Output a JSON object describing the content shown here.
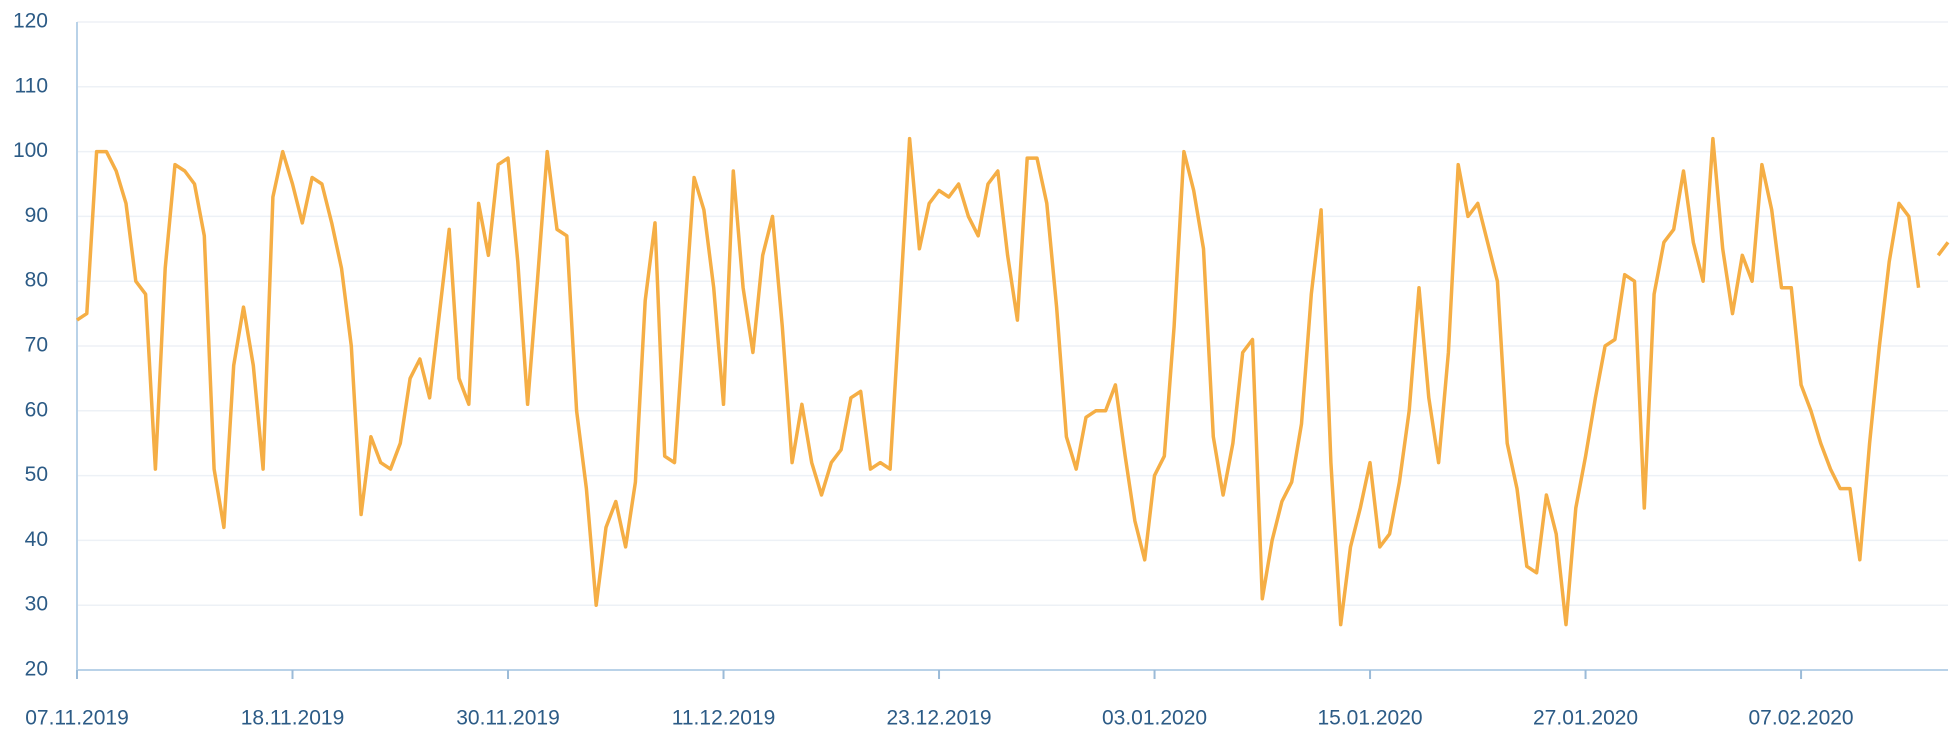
{
  "chart_data": {
    "type": "line",
    "categories": [
      "07.11.2019",
      null,
      null,
      null,
      null,
      null,
      null,
      null,
      null,
      null,
      null,
      null,
      null,
      null,
      null,
      null,
      null,
      null,
      null,
      null,
      null,
      null,
      "18.11.2019",
      null,
      null,
      null,
      null,
      null,
      null,
      null,
      null,
      null,
      null,
      null,
      null,
      null,
      null,
      null,
      null,
      null,
      null,
      null,
      null,
      null,
      "30.11.2019",
      null,
      null,
      null,
      null,
      null,
      null,
      null,
      null,
      null,
      null,
      null,
      null,
      null,
      null,
      null,
      null,
      null,
      null,
      null,
      null,
      null,
      "11.12.2019",
      null,
      null,
      null,
      null,
      null,
      null,
      null,
      null,
      null,
      null,
      null,
      null,
      null,
      null,
      null,
      null,
      null,
      null,
      null,
      null,
      null,
      "23.12.2019",
      null,
      null,
      null,
      null,
      null,
      null,
      null,
      null,
      null,
      null,
      null,
      null,
      null,
      null,
      null,
      null,
      null,
      null,
      null,
      null,
      null,
      "03.01.2020",
      null,
      null,
      null,
      null,
      null,
      null,
      null,
      null,
      null,
      null,
      null,
      null,
      null,
      null,
      null,
      null,
      null,
      null,
      null,
      null,
      null,
      "15.01.2020",
      null,
      null,
      null,
      null,
      null,
      null,
      null,
      null,
      null,
      null,
      null,
      null,
      null,
      null,
      null,
      null,
      null,
      null,
      null,
      null,
      null,
      "27.01.2020",
      null,
      null,
      null,
      null,
      null,
      null,
      null,
      null,
      null,
      null,
      null,
      null,
      null,
      null,
      null,
      null,
      null,
      null,
      null,
      null,
      null,
      "07.02.2020",
      null,
      null,
      null,
      null,
      null,
      null,
      null,
      null,
      null,
      null,
      null,
      null,
      null,
      null,
      null
    ],
    "values": [
      74,
      75,
      100,
      100,
      97,
      92,
      80,
      78,
      51,
      82,
      98,
      97,
      95,
      87,
      51,
      42,
      67,
      76,
      67,
      51,
      93,
      100,
      95,
      89,
      96,
      95,
      89,
      82,
      70,
      44,
      56,
      52,
      51,
      55,
      65,
      68,
      62,
      75,
      88,
      65,
      61,
      92,
      84,
      98,
      99,
      83,
      61,
      80,
      100,
      88,
      87,
      60,
      48,
      30,
      42,
      46,
      39,
      49,
      77,
      89,
      53,
      52,
      74,
      96,
      91,
      79,
      61,
      97,
      79,
      69,
      84,
      90,
      73,
      52,
      61,
      52,
      47,
      52,
      54,
      62,
      63,
      51,
      52,
      51,
      76,
      102,
      85,
      92,
      94,
      93,
      95,
      90,
      87,
      95,
      97,
      84,
      74,
      99,
      99,
      92,
      76,
      56,
      51,
      59,
      60,
      60,
      64,
      53,
      43,
      37,
      50,
      53,
      73,
      100,
      94,
      85,
      56,
      47,
      55,
      69,
      71,
      31,
      40,
      46,
      49,
      58,
      78,
      91,
      52,
      27,
      39,
      45,
      52,
      39,
      41,
      49,
      60,
      79,
      62,
      52,
      69,
      98,
      90,
      92,
      86,
      80,
      55,
      48,
      36,
      35,
      47,
      41,
      27,
      45,
      53,
      62,
      70,
      71,
      81,
      80,
      45,
      78,
      86,
      88,
      97,
      86,
      80,
      102,
      85,
      75,
      84,
      80,
      98,
      91,
      79,
      79,
      64,
      60,
      55,
      51,
      48,
      48,
      37,
      55,
      70,
      83,
      92,
      90,
      79,
      null,
      84,
      86
    ],
    "color": "#f5ae45",
    "ylim": [
      20,
      120
    ],
    "yticks": [
      20,
      30,
      40,
      50,
      60,
      70,
      80,
      90,
      100,
      110,
      120
    ],
    "grid": true
  }
}
